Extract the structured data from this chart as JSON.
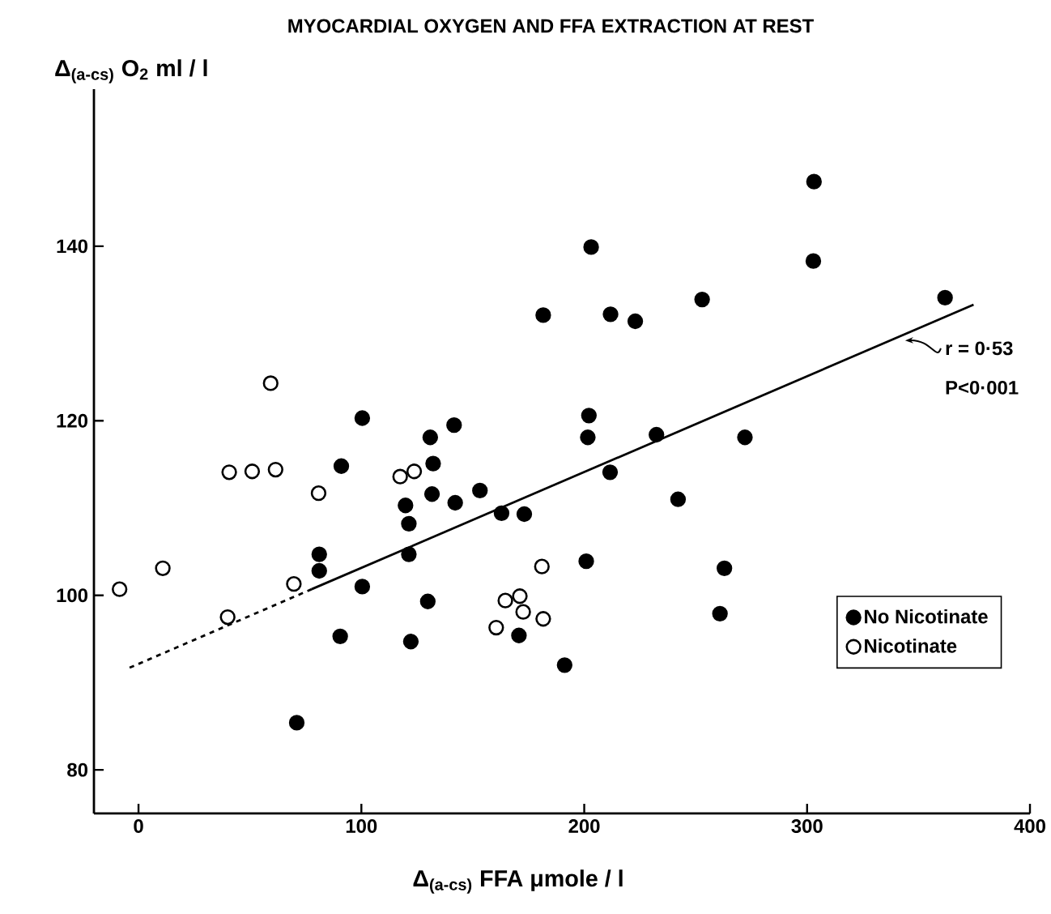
{
  "chart_data": {
    "type": "scatter",
    "title": "MYOCARDIAL OXYGEN AND FFA EXTRACTION AT REST",
    "xlabel": "Δ$_{(a-cs)}$ FFA μmole / l",
    "ylabel": "Δ$_{(a-cs)}$ O$_{2}$ ml / l",
    "xlim": [
      -20,
      400
    ],
    "ylim": [
      75,
      158
    ],
    "xticks": [
      0,
      100,
      200,
      300,
      400
    ],
    "yticks": [
      80,
      100,
      120,
      140
    ],
    "legend": "bottom right",
    "annotations": [
      {
        "text": "r = 0·53",
        "x": 344,
        "y": 130
      },
      "P<0·001"
    ],
    "series": [
      {
        "name": "No Nicotinate",
        "color": "#000000",
        "marker": "circle",
        "x": [
          100.4,
          91,
          81.1,
          81.1,
          100.4,
          90.5,
          122.2,
          119.8,
          121.3,
          121.3,
          130.9,
          132.2,
          131.7,
          141.6,
          142.1,
          153.2,
          162.9,
          173.1,
          129.8,
          181.6,
          303.1,
          302.8,
          203.1,
          211.8,
          222.9,
          252.9,
          361.9,
          202.1,
          201.6,
          232.4,
          272.1,
          211.6,
          242.1,
          200.9,
          262.9,
          260.9,
          170.7,
          71,
          191.2
        ],
        "values": [
          120.3,
          114.8,
          104.7,
          102.8,
          101.0,
          95.3,
          94.7,
          110.3,
          108.2,
          104.7,
          118.1,
          115.1,
          111.6,
          119.5,
          110.6,
          112.0,
          109.4,
          109.3,
          99.3,
          132.1,
          147.4,
          138.3,
          139.9,
          132.2,
          131.4,
          133.9,
          134.1,
          120.6,
          118.1,
          118.4,
          118.1,
          114.1,
          111.0,
          103.9,
          103.1,
          97.9,
          95.4,
          85.4,
          92.0
        ]
      },
      {
        "name": "Nicotinate",
        "color": "#ffffff",
        "marker": "circle",
        "x": [
          -8.5,
          10.9,
          40,
          40.7,
          51,
          61.5,
          59.3,
          80.8,
          69.7,
          117.4,
          123.7,
          160.5,
          164.6,
          171.1,
          172.6,
          181.6,
          181.0
        ],
        "values": [
          100.7,
          103.1,
          97.5,
          114.1,
          114.2,
          114.4,
          124.3,
          111.7,
          101.3,
          113.6,
          114.2,
          96.3,
          99.4,
          99.9,
          98.1,
          97.3,
          103.3
        ]
      },
      {
        "type": "line",
        "color": "#000000",
        "line_style": "dashed",
        "x": [
          -4,
          77.7
        ],
        "values": [
          91.7,
          100.7
        ]
      },
      {
        "type": "line",
        "color": "#000000",
        "line_style": "solid",
        "x": [
          77.7,
          374.7
        ],
        "values": [
          100.7,
          133.3
        ]
      }
    ]
  }
}
